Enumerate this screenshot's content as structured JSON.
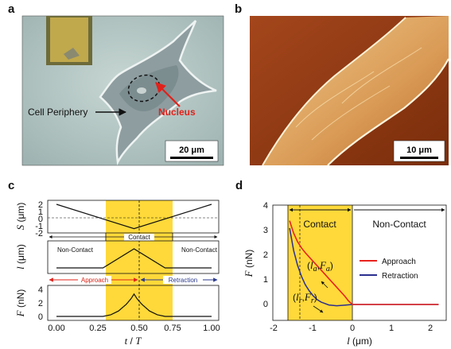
{
  "panels": {
    "a": {
      "letter": "a",
      "label_periphery": "Cell Periphery",
      "label_nucleus": "Nucleus",
      "scale_bar": "20 μm"
    },
    "b": {
      "letter": "b",
      "scale_bar": "10 μm"
    },
    "c": {
      "letter": "c",
      "ylabel_s_sym": "S",
      "ylabel_s_unit": " (μm)",
      "ylabel_l_sym": "l",
      "ylabel_l_unit": " (μm)",
      "ylabel_f_sym": "F",
      "ylabel_f_unit": " (nN)",
      "xlabel_t": "t",
      "xlabel_sep": " / ",
      "xlabel_T": "T",
      "contact": "Contact",
      "noncontact_left": "Non-Contact",
      "noncontact_right": "Non-Contact",
      "approach": "Approach",
      "retraction": "Retraction",
      "x_ticks": [
        "0.00",
        "0.25",
        "0.50",
        "0.75",
        "1.00"
      ],
      "s_ticks": [
        "2",
        "1",
        "0",
        "-1",
        "-2"
      ],
      "f_ticks": [
        "4",
        "2",
        "0"
      ]
    },
    "d": {
      "letter": "d",
      "ylabel_sym": "F",
      "ylabel_unit": " (nN)",
      "xlabel_sym": "l",
      "xlabel_unit": " (μm)",
      "contact": "Contact",
      "noncontact": "Non-Contact",
      "legend_approach": "Approach",
      "legend_retraction": "Retraction",
      "ann_a_open": "(",
      "ann_a_l": "l",
      "ann_a_lsub": "a",
      "ann_a_comma": ",",
      "ann_a_F": "F",
      "ann_a_Fsub": "a",
      "ann_a_close": ")",
      "ann_r_open": "(",
      "ann_r_l": "l",
      "ann_r_lsub": "r",
      "ann_r_comma": ",",
      "ann_r_F": "F",
      "ann_r_Fsub": "r",
      "ann_r_close": ")",
      "x_ticks": [
        "-2",
        "-1",
        "0",
        "1",
        "2"
      ],
      "y_ticks": [
        "4",
        "3",
        "2",
        "1",
        "0"
      ]
    }
  },
  "colors": {
    "contact_fill": "#FFD93A",
    "approach": "#E8231E",
    "retraction": "#2B2F8F",
    "approach_text": "#D62418",
    "retraction_text": "#2B3A8C",
    "nucleus_arrow": "#E0221B"
  },
  "chart_data": [
    {
      "panel": "c-top",
      "type": "line",
      "ylabel": "S (μm)",
      "ylim": [
        -2,
        2
      ],
      "x": [
        0.0,
        0.5,
        1.0
      ],
      "series": [
        {
          "values": [
            2,
            -1.6,
            2
          ]
        }
      ]
    },
    {
      "panel": "c-middle",
      "type": "line",
      "ylabel": "l (μm)",
      "x": [
        0.0,
        0.3,
        0.5,
        0.7,
        1.0
      ],
      "series": [
        {
          "values": [
            0,
            0,
            1.6,
            0,
            0
          ]
        }
      ]
    },
    {
      "panel": "c-bottom",
      "type": "line",
      "ylabel": "F (nN)",
      "xlabel": "t / T",
      "xlim": [
        0,
        1
      ],
      "ylim": [
        0,
        4
      ],
      "x": [
        0.0,
        0.3,
        0.35,
        0.4,
        0.45,
        0.48,
        0.5,
        0.52,
        0.55,
        0.6,
        0.65,
        0.7,
        1.0
      ],
      "series": [
        {
          "values": [
            0,
            0,
            0.25,
            0.8,
            1.8,
            2.6,
            3.3,
            2.6,
            1.8,
            0.8,
            0.25,
            0,
            0
          ]
        }
      ]
    },
    {
      "panel": "d",
      "type": "line",
      "xlabel": "l (μm)",
      "ylabel": "F (nN)",
      "xlim": [
        -2,
        2.4
      ],
      "ylim": [
        -0.3,
        4
      ],
      "legend": "right",
      "series": [
        {
          "name": "Approach",
          "x": [
            -1.6,
            -1.5,
            -1.4,
            -1.3,
            -1.2,
            -1.0,
            -0.8,
            -0.6,
            -0.4,
            -0.2,
            -0.1,
            0.0,
            0.5,
            1.0,
            1.5,
            2.2
          ],
          "values": [
            3.4,
            2.9,
            2.55,
            2.3,
            2.1,
            1.75,
            1.4,
            1.05,
            0.7,
            0.35,
            0.15,
            0.0,
            0.0,
            0.0,
            0.0,
            0.0
          ]
        },
        {
          "name": "Retraction",
          "x": [
            -1.6,
            -1.5,
            -1.4,
            -1.3,
            -1.2,
            -1.1,
            -1.0,
            -0.9,
            -0.8,
            -0.6,
            -0.4,
            -0.2,
            0.0,
            0.5,
            1.0,
            1.5,
            2.2
          ],
          "values": [
            3.1,
            2.2,
            1.6,
            1.15,
            0.8,
            0.55,
            0.35,
            0.2,
            0.1,
            -0.02,
            -0.05,
            -0.03,
            0.0,
            0.0,
            0.0,
            0.0,
            0.0
          ]
        }
      ]
    }
  ]
}
